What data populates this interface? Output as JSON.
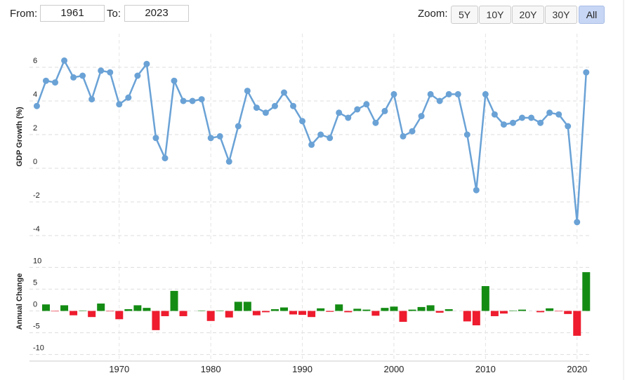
{
  "controls": {
    "from_label": "From:",
    "from_value": "1961",
    "to_label": "To:",
    "to_value": "2023",
    "zoom_label": "Zoom:",
    "zoom_buttons": [
      "5Y",
      "10Y",
      "20Y",
      "30Y",
      "All"
    ],
    "active_zoom": "All"
  },
  "chart_data": [
    {
      "type": "line",
      "y_label": "GDP Growth (%)",
      "color": "#6aa2d6",
      "grid": true,
      "x": [
        1961,
        1962,
        1963,
        1964,
        1965,
        1966,
        1967,
        1968,
        1969,
        1970,
        1971,
        1972,
        1973,
        1974,
        1975,
        1976,
        1977,
        1978,
        1979,
        1980,
        1981,
        1982,
        1983,
        1984,
        1985,
        1986,
        1987,
        1988,
        1989,
        1990,
        1991,
        1992,
        1993,
        1994,
        1995,
        1996,
        1997,
        1998,
        1999,
        2000,
        2001,
        2002,
        2003,
        2004,
        2005,
        2006,
        2007,
        2008,
        2009,
        2010,
        2011,
        2012,
        2013,
        2014,
        2015,
        2016,
        2017,
        2018,
        2019,
        2020,
        2021
      ],
      "values": [
        3.7,
        5.2,
        5.1,
        6.4,
        5.4,
        5.5,
        4.1,
        5.8,
        5.7,
        3.8,
        4.2,
        5.5,
        6.2,
        1.8,
        0.6,
        5.2,
        4.0,
        4.0,
        4.1,
        1.8,
        1.9,
        0.4,
        2.5,
        4.6,
        3.6,
        3.3,
        3.7,
        4.5,
        3.7,
        2.8,
        1.4,
        2.0,
        1.8,
        3.3,
        3.0,
        3.5,
        3.8,
        2.7,
        3.4,
        4.4,
        1.9,
        2.2,
        3.1,
        4.4,
        4.0,
        4.4,
        4.4,
        2.0,
        -1.3,
        4.4,
        3.2,
        2.6,
        2.7,
        3.0,
        3.0,
        2.7,
        3.3,
        3.2,
        2.5,
        -3.2,
        5.7
      ],
      "xlim": [
        1960.2,
        2021.4
      ],
      "xticks": [
        1970,
        1980,
        1990,
        2000,
        2010,
        2020
      ],
      "ylim": [
        -4.5,
        8
      ],
      "yticks": [
        -4,
        -2,
        0,
        2,
        4,
        6
      ]
    },
    {
      "type": "bar",
      "y_label": "Annual Change",
      "positive_color": "#148c14",
      "negative_color": "#ee1c2e",
      "grid": true,
      "x": [
        1962,
        1963,
        1964,
        1965,
        1966,
        1967,
        1968,
        1969,
        1970,
        1971,
        1972,
        1973,
        1974,
        1975,
        1976,
        1977,
        1978,
        1979,
        1980,
        1981,
        1982,
        1983,
        1984,
        1985,
        1986,
        1987,
        1988,
        1989,
        1990,
        1991,
        1992,
        1993,
        1994,
        1995,
        1996,
        1997,
        1998,
        1999,
        2000,
        2001,
        2002,
        2003,
        2004,
        2005,
        2006,
        2007,
        2008,
        2009,
        2010,
        2011,
        2012,
        2013,
        2014,
        2015,
        2016,
        2017,
        2018,
        2019,
        2020,
        2021
      ],
      "values": [
        1.5,
        -0.1,
        1.3,
        -1.0,
        0.1,
        -1.4,
        1.7,
        -0.1,
        -1.9,
        0.4,
        1.3,
        0.7,
        -4.4,
        -1.2,
        4.6,
        -1.2,
        0.0,
        0.1,
        -2.3,
        0.1,
        -1.5,
        2.1,
        2.1,
        -1.0,
        -0.3,
        0.4,
        0.8,
        -0.8,
        -0.9,
        -1.4,
        0.6,
        -0.2,
        1.5,
        -0.3,
        0.5,
        0.3,
        -1.1,
        0.7,
        1.0,
        -2.5,
        0.3,
        0.9,
        1.3,
        -0.4,
        0.4,
        0.0,
        -2.4,
        -3.3,
        5.7,
        -1.2,
        -0.6,
        0.1,
        0.3,
        0.0,
        -0.3,
        0.6,
        -0.1,
        -0.7,
        -5.7,
        8.9
      ],
      "xlim": [
        1960.2,
        2021.4
      ],
      "xticks": [
        1970,
        1980,
        1990,
        2000,
        2010,
        2020
      ],
      "ylim": [
        -11.5,
        11.5
      ],
      "yticks": [
        -10,
        -5,
        0,
        5,
        10
      ]
    }
  ]
}
